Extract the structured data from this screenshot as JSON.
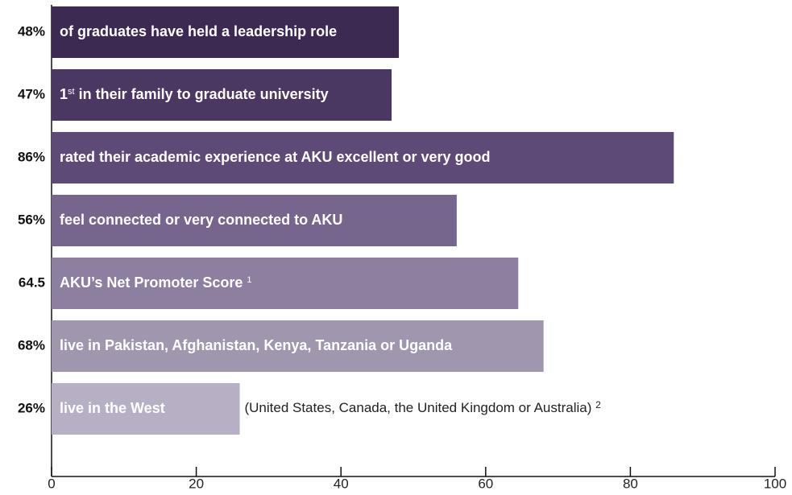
{
  "chart_data": {
    "type": "barh",
    "categories": [
      [
        "of graduates have held a leadership role"
      ],
      [
        "1",
        {
          "sup": "st"
        },
        " in their family to graduate university"
      ],
      [
        "rated their academic experience at AKU excellent or very good"
      ],
      [
        "feel connected or very connected to AKU"
      ],
      [
        "AKU’s Net Promoter Score ",
        {
          "sup": "1"
        }
      ],
      [
        "live in Pakistan, Afghanistan, Kenya, Tanzania or Uganda"
      ],
      [
        "live in the West"
      ]
    ],
    "values": [
      48,
      47,
      86,
      56,
      64.5,
      68,
      26
    ],
    "value_labels": [
      "48%",
      "47%",
      "86%",
      "56%",
      "64.5",
      "68%",
      "26%"
    ],
    "colors": [
      "#3d2a53",
      "#4a3762",
      "#5e4a76",
      "#76668e",
      "#8c7f9f",
      "#a097ae",
      "#b7afc4"
    ],
    "annotation": {
      "text": "(United States, Canada, the United Kingdom or Australia) ",
      "sup": "2",
      "bar": 6
    },
    "xlim": [
      0,
      100
    ],
    "xticks": [
      0,
      20,
      40,
      60,
      80,
      100
    ]
  }
}
